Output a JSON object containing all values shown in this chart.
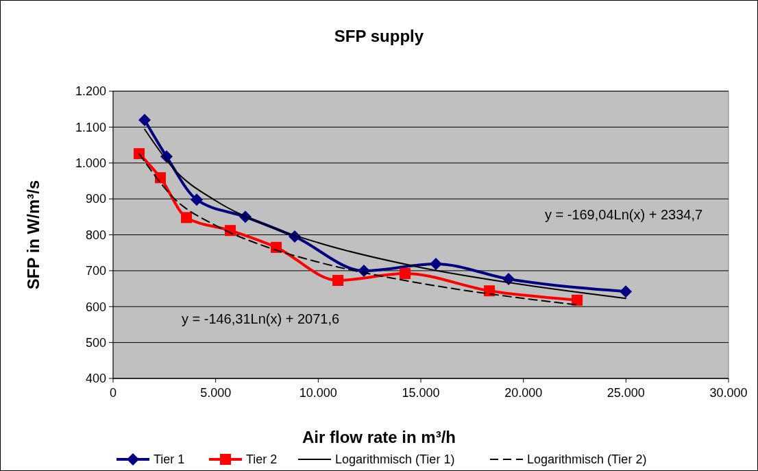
{
  "chart_data": {
    "type": "line",
    "title": "SFP supply",
    "xlabel": "Air flow rate in m³/h",
    "ylabel": "SFP in W/m³/s",
    "xlim": [
      0,
      30000
    ],
    "xticks": [
      0,
      {
        "value": 5000,
        "label": "5.000"
      },
      {
        "value": 10000,
        "label": "10.000"
      },
      {
        "value": 15000,
        "label": "15.000"
      },
      {
        "value": 20000,
        "label": "20.000"
      },
      {
        "value": 25000,
        "label": "25.000"
      },
      {
        "value": 30000,
        "label": "30.000"
      }
    ],
    "ylim": [
      400,
      1200
    ],
    "yticks": [
      400,
      500,
      600,
      700,
      800,
      900,
      {
        "value": 1000,
        "label": "1.000"
      },
      {
        "value": 1100,
        "label": "1.100"
      },
      {
        "value": 1200,
        "label": "1.200"
      }
    ],
    "grid": "y",
    "legend": "bottom",
    "annotations": [
      "y = -169,04Ln(x) + 2334,7",
      "y = -146,31Ln(x) + 2071,6"
    ],
    "series": [
      {
        "name": "Tier 1",
        "color": "#000080",
        "marker": "diamond",
        "x": [
          1537,
          2606,
          4076,
          6448,
          8854,
          12228,
          15737,
          19278,
          24991
        ],
        "values": [
          1120,
          1018,
          898,
          850,
          795,
          700,
          719,
          677,
          642
        ]
      },
      {
        "name": "Tier 2",
        "color": "#ff0000",
        "marker": "square",
        "x": [
          1270,
          2305,
          3575,
          5713,
          7952,
          10959,
          14233,
          18343,
          22620
        ],
        "values": [
          1026,
          959,
          848,
          812,
          765,
          673,
          692,
          644,
          618
        ]
      },
      {
        "name": "Logarithmisch (Tier 1)",
        "color": "#000000",
        "marker": "none",
        "line_style": "solid",
        "x": [
          1537,
          3000,
          5000,
          7500,
          10000,
          15000,
          20000,
          24991
        ],
        "values": [
          1094,
          981,
          895,
          826,
          778,
          709,
          661,
          623
        ]
      },
      {
        "name": "Logarithmisch (Tier 2)",
        "color": "#000000",
        "marker": "none",
        "line_style": "dashed",
        "x": [
          1270,
          3000,
          5000,
          7500,
          10000,
          15000,
          20000,
          22620
        ],
        "values": [
          1026,
          900,
          826,
          766,
          724,
          665,
          623,
          605
        ]
      }
    ]
  }
}
